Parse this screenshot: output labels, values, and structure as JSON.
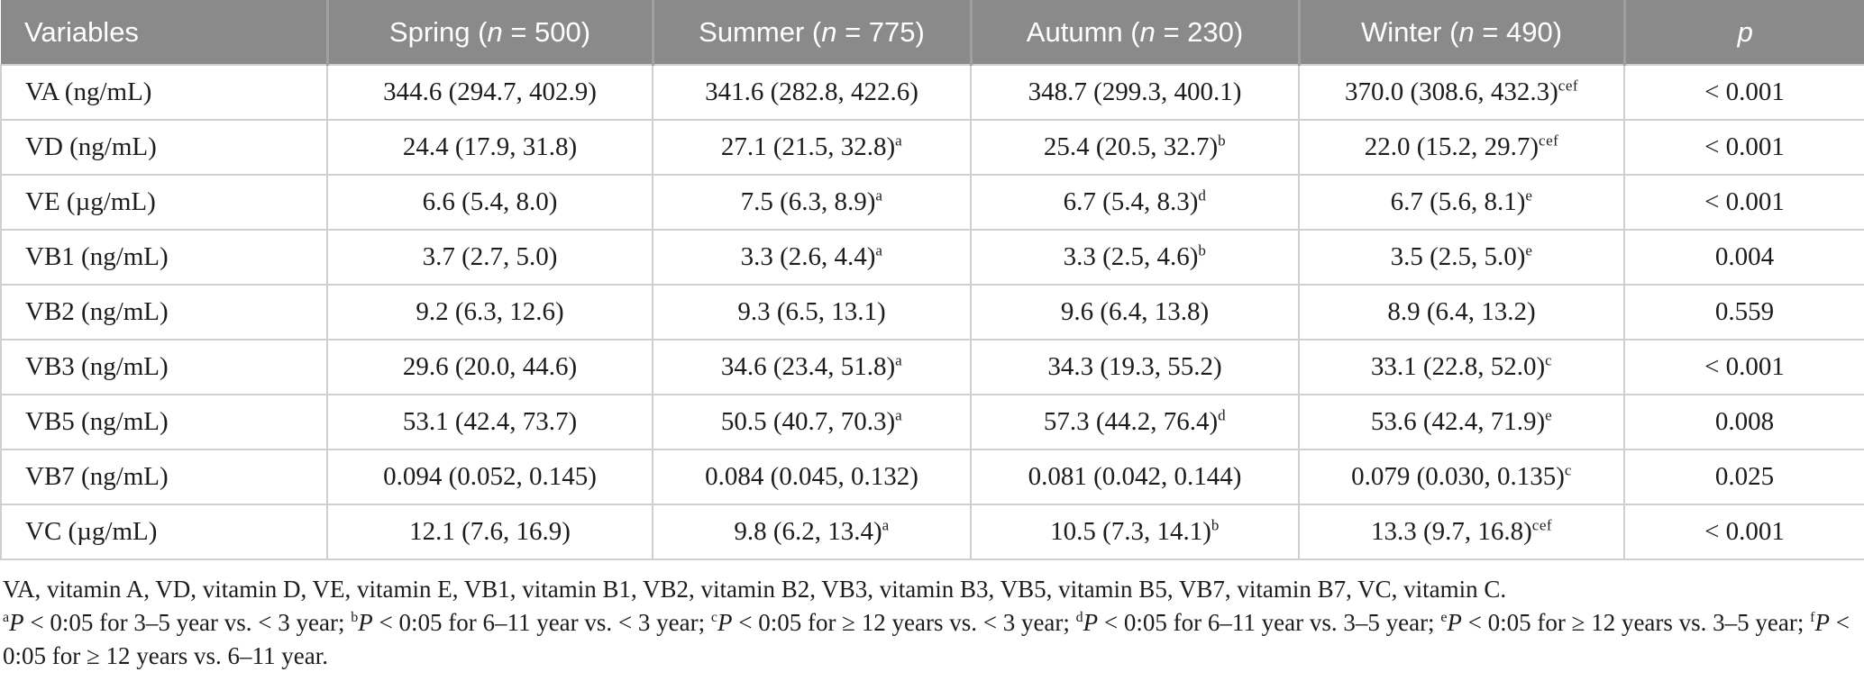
{
  "colors": {
    "header_bg": "#8a8a8a",
    "header_divider": "#a0a0a0",
    "header_text": "#ffffff",
    "body_border": "#cfcfcf",
    "body_text": "#1c1c1c"
  },
  "table": {
    "columns": [
      {
        "key": "variables",
        "label": "Variables"
      },
      {
        "key": "spring",
        "season": "Spring",
        "n_label": "n",
        "n": "500"
      },
      {
        "key": "summer",
        "season": "Summer",
        "n_label": "n",
        "n": "775"
      },
      {
        "key": "autumn",
        "season": "Autumn",
        "n_label": "n",
        "n": "230"
      },
      {
        "key": "winter",
        "season": "Winter",
        "n_label": "n",
        "n": "490"
      },
      {
        "key": "p",
        "label": "p",
        "italic": true
      }
    ],
    "rows": [
      {
        "variable": "VA (ng/mL)",
        "spring": {
          "v": "344.6 (294.7, 402.9)",
          "sup": ""
        },
        "summer": {
          "v": "341.6 (282.8, 422.6)",
          "sup": ""
        },
        "autumn": {
          "v": "348.7 (299.3, 400.1)",
          "sup": ""
        },
        "winter": {
          "v": "370.0 (308.6, 432.3)",
          "sup": "cef"
        },
        "p": "< 0.001"
      },
      {
        "variable": "VD (ng/mL)",
        "spring": {
          "v": "24.4 (17.9, 31.8)",
          "sup": ""
        },
        "summer": {
          "v": "27.1 (21.5, 32.8)",
          "sup": "a"
        },
        "autumn": {
          "v": "25.4 (20.5, 32.7)",
          "sup": "b"
        },
        "winter": {
          "v": "22.0 (15.2, 29.7)",
          "sup": "cef"
        },
        "p": "< 0.001"
      },
      {
        "variable": "VE (µg/mL)",
        "spring": {
          "v": "6.6 (5.4, 8.0)",
          "sup": ""
        },
        "summer": {
          "v": "7.5 (6.3, 8.9)",
          "sup": "a"
        },
        "autumn": {
          "v": "6.7 (5.4, 8.3)",
          "sup": "d"
        },
        "winter": {
          "v": "6.7 (5.6, 8.1)",
          "sup": "e"
        },
        "p": "< 0.001"
      },
      {
        "variable": "VB1 (ng/mL)",
        "spring": {
          "v": "3.7 (2.7, 5.0)",
          "sup": ""
        },
        "summer": {
          "v": "3.3 (2.6, 4.4)",
          "sup": "a"
        },
        "autumn": {
          "v": "3.3 (2.5, 4.6)",
          "sup": "b"
        },
        "winter": {
          "v": "3.5 (2.5, 5.0)",
          "sup": "e"
        },
        "p": "0.004"
      },
      {
        "variable": "VB2 (ng/mL)",
        "spring": {
          "v": "9.2 (6.3, 12.6)",
          "sup": ""
        },
        "summer": {
          "v": "9.3 (6.5, 13.1)",
          "sup": ""
        },
        "autumn": {
          "v": "9.6 (6.4, 13.8)",
          "sup": ""
        },
        "winter": {
          "v": "8.9 (6.4, 13.2)",
          "sup": ""
        },
        "p": "0.559"
      },
      {
        "variable": "VB3 (ng/mL)",
        "spring": {
          "v": "29.6 (20.0, 44.6)",
          "sup": ""
        },
        "summer": {
          "v": "34.6 (23.4, 51.8)",
          "sup": "a"
        },
        "autumn": {
          "v": "34.3 (19.3, 55.2)",
          "sup": ""
        },
        "winter": {
          "v": "33.1 (22.8, 52.0)",
          "sup": "c"
        },
        "p": "< 0.001"
      },
      {
        "variable": "VB5 (ng/mL)",
        "spring": {
          "v": "53.1 (42.4, 73.7)",
          "sup": ""
        },
        "summer": {
          "v": "50.5 (40.7, 70.3)",
          "sup": "a"
        },
        "autumn": {
          "v": "57.3 (44.2, 76.4)",
          "sup": "d"
        },
        "winter": {
          "v": "53.6 (42.4, 71.9)",
          "sup": "e"
        },
        "p": "0.008"
      },
      {
        "variable": "VB7 (ng/mL)",
        "spring": {
          "v": "0.094 (0.052, 0.145)",
          "sup": ""
        },
        "summer": {
          "v": "0.084 (0.045, 0.132)",
          "sup": ""
        },
        "autumn": {
          "v": "0.081 (0.042, 0.144)",
          "sup": ""
        },
        "winter": {
          "v": "0.079 (0.030, 0.135)",
          "sup": "c"
        },
        "p": "0.025"
      },
      {
        "variable": "VC (µg/mL)",
        "spring": {
          "v": "12.1 (7.6, 16.9)",
          "sup": ""
        },
        "summer": {
          "v": "9.8 (6.2, 13.4)",
          "sup": "a"
        },
        "autumn": {
          "v": "10.5 (7.3, 14.1)",
          "sup": "b"
        },
        "winter": {
          "v": "13.3 (9.7, 16.8)",
          "sup": "cef"
        },
        "p": "< 0.001"
      }
    ]
  },
  "footnotes": {
    "abbreviations": "VA, vitamin A, VD, vitamin D, VE, vitamin E, VB1, vitamin B1, VB2, vitamin B2, VB3, vitamin B3, VB5, vitamin B5, VB7, vitamin B7, VC, vitamin C.",
    "significance": [
      {
        "marker": "a",
        "p_symbol": "P",
        "text": " < 0:05 for 3–5 year vs. < 3 year; "
      },
      {
        "marker": "b",
        "p_symbol": "P",
        "text": " < 0:05 for 6–11 year vs. < 3 year; "
      },
      {
        "marker": "c",
        "p_symbol": "P",
        "text": " < 0:05 for ≥ 12 years vs. < 3 year; "
      },
      {
        "marker": "d",
        "p_symbol": "P",
        "text": " < 0:05 for 6–11 year vs. 3–5 year; "
      },
      {
        "marker": "e",
        "p_symbol": "P",
        "text": " < 0:05 for ≥ 12 years vs. 3–5 year; "
      },
      {
        "marker": "f",
        "p_symbol": "P",
        "text": " < 0:05 for ≥ 12 years vs. 6–11 year."
      }
    ]
  }
}
